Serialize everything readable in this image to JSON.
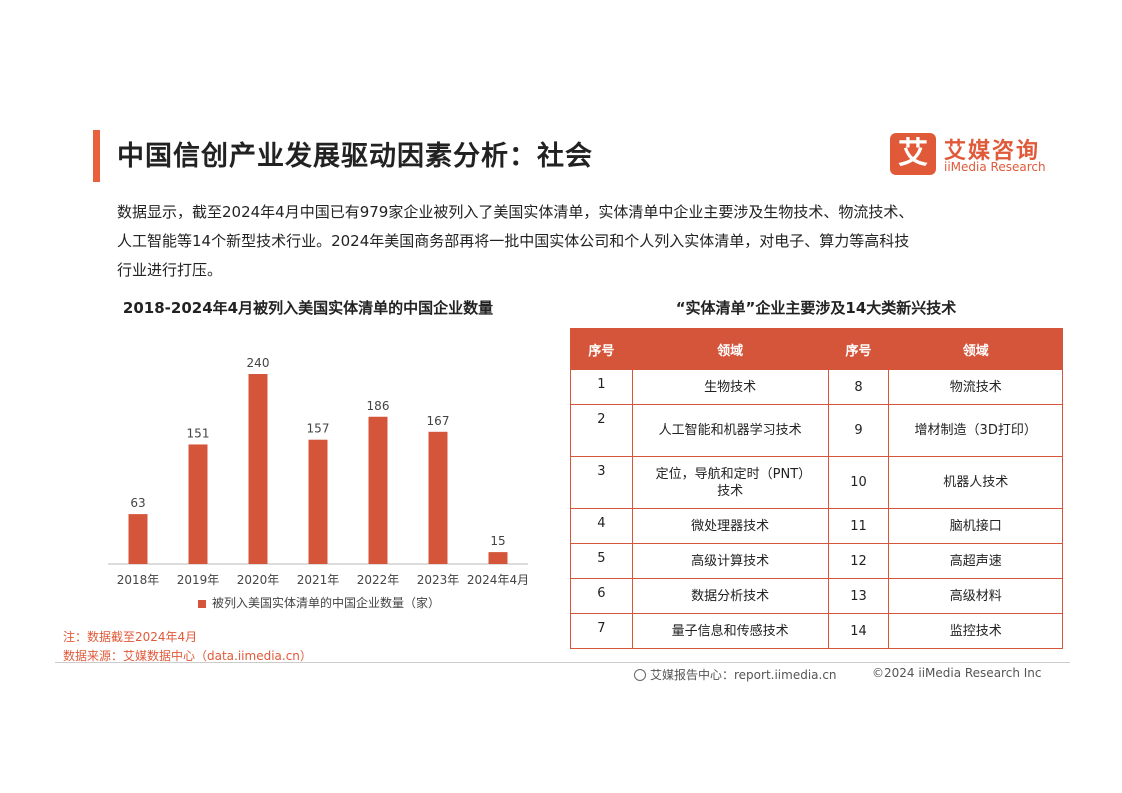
{
  "header": {
    "title": "中国信创产业发展驱动因素分析：社会",
    "logo_mark": "艾",
    "logo_cn": "艾媒咨询",
    "logo_en": "iiMedia Research"
  },
  "intro": {
    "line1": "数据显示，截至2024年4月中国已有979家企业被列入了美国实体清单，实体清单中企业主要涉及生物技术、物流技术、",
    "line2": "人工智能等14个新型技术行业。2024年美国商务部再将一批中国实体公司和个人列入实体清单，对电子、算力等高科技",
    "line3": "行业进行打压。"
  },
  "chart_data": {
    "type": "bar",
    "title": "2018-2024年4月被列入美国实体清单的中国企业数量",
    "categories": [
      "2018年",
      "2019年",
      "2020年",
      "2021年",
      "2022年",
      "2023年",
      "2024年4月"
    ],
    "series": [
      {
        "name": "被列入美国实体清单的中国企业数量（家）",
        "values": [
          63,
          151,
          240,
          157,
          186,
          167,
          15
        ]
      }
    ],
    "ylim": [
      0,
      260
    ],
    "grid": false,
    "legend_position": "bottom",
    "bar_color": "#d4553a"
  },
  "table": {
    "title": "“实体清单”企业主要涉及14大类新兴技术",
    "headers": [
      "序号",
      "领域",
      "序号",
      "领域"
    ],
    "rows": [
      [
        "1",
        "生物技术",
        "8",
        "物流技术"
      ],
      [
        "2",
        "人工智能和机器学习技术",
        "9",
        "增材制造（3D打印）"
      ],
      [
        "3",
        "定位，导航和定时（PNT）技术",
        "10",
        "机器人技术"
      ],
      [
        "4",
        "微处理器技术",
        "11",
        "脑机接口"
      ],
      [
        "5",
        "高级计算技术",
        "12",
        "高超声速"
      ],
      [
        "6",
        "数据分析技术",
        "13",
        "高级材料"
      ],
      [
        "7",
        "量子信息和传感技术",
        "14",
        "监控技术"
      ]
    ]
  },
  "notes": {
    "note": "注：数据截至2024年4月",
    "source": "数据来源：艾媒数据中心（data.iimedia.cn）"
  },
  "footer": {
    "left": "艾媒报告中心：report.iimedia.cn",
    "right": "©2024  iiMedia Research  Inc",
    "icon": "globe-icon"
  },
  "colors": {
    "accent": "#e05a3a",
    "bar": "#d4553a"
  }
}
